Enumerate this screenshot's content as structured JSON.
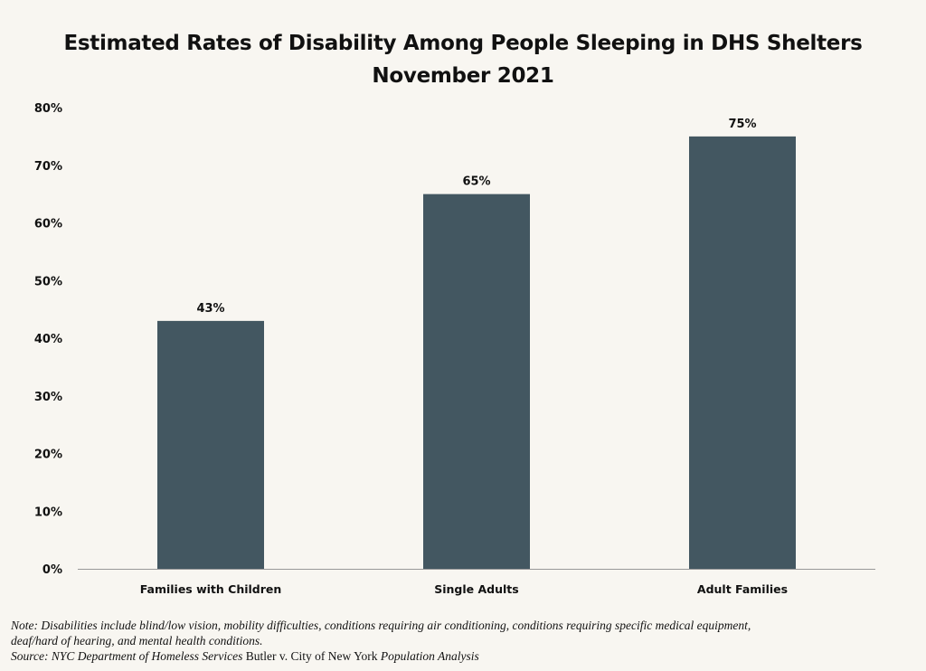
{
  "title_line1": "Estimated Rates of Disability Among People Sleeping in DHS Shelters",
  "title_line2": "November 2021",
  "note": {
    "line1": "Note: Disabilities include blind/low vision, mobility difficulties, conditions requiring air conditioning, conditions requiring specific medical equipment,",
    "line2": "deaf/hard of hearing,  and mental health conditions.",
    "source_prefix": "Source: NYC Department of Homeless Services",
    "source_case": " Butler v. City of New York ",
    "source_suffix": "Population Analysis"
  },
  "colors": {
    "bar": "#435761",
    "axis": "#999999",
    "background": "#f8f6f1"
  },
  "chart_data": {
    "type": "bar",
    "title": "Estimated Rates of Disability Among People Sleeping in DHS Shelters November 2021",
    "categories": [
      "Families with Children",
      "Single Adults",
      "Adult Families"
    ],
    "values": [
      43,
      65,
      75
    ],
    "data_labels": [
      "43%",
      "65%",
      "75%"
    ],
    "ylim": [
      0,
      80
    ],
    "yticks": [
      0,
      10,
      20,
      30,
      40,
      50,
      60,
      70,
      80
    ],
    "ytick_labels": [
      "0%",
      "10%",
      "20%",
      "30%",
      "40%",
      "50%",
      "60%",
      "70%",
      "80%"
    ],
    "xlabel": "",
    "ylabel": "",
    "grid": false,
    "legend": "none"
  }
}
